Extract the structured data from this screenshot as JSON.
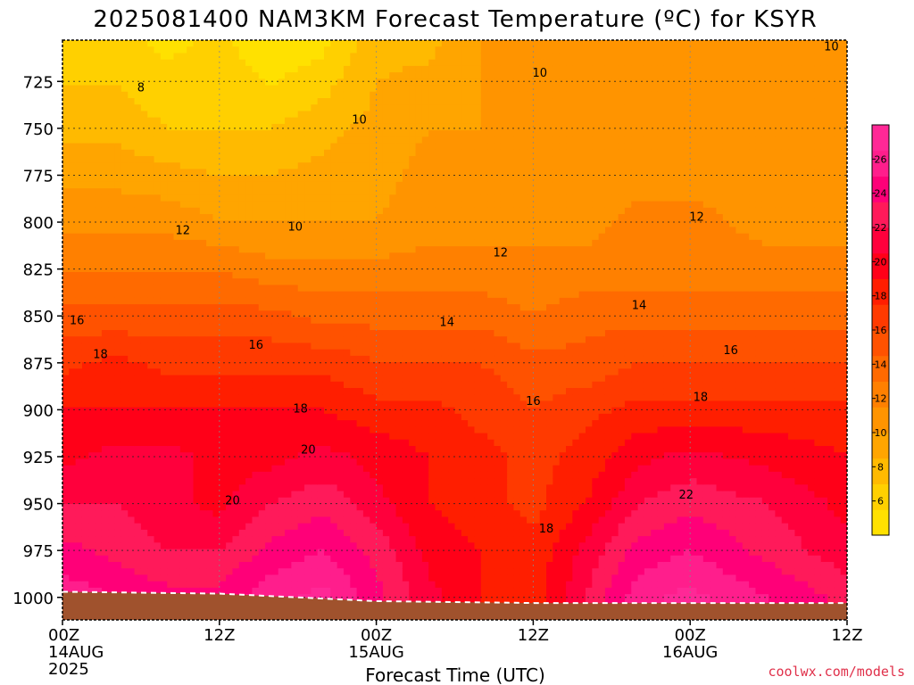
{
  "chart_data": {
    "type": "heatmap",
    "title": "2025081400 NAM3KM Forecast Temperature (ºC) for KSYR",
    "xlabel": "Forecast Time (UTC)",
    "ylabel": "",
    "x_ticks": [
      {
        "hour": 0,
        "lines": [
          "00Z",
          "14AUG",
          "2025"
        ]
      },
      {
        "hour": 12,
        "lines": [
          "12Z"
        ]
      },
      {
        "hour": 24,
        "lines": [
          "00Z",
          "15AUG"
        ]
      },
      {
        "hour": 36,
        "lines": [
          "12Z"
        ]
      },
      {
        "hour": 48,
        "lines": [
          "00Z",
          "16AUG"
        ]
      },
      {
        "hour": 60,
        "lines": [
          "12Z"
        ]
      }
    ],
    "xlim": [
      0,
      60
    ],
    "y_ticks": [
      725,
      750,
      775,
      800,
      825,
      850,
      875,
      900,
      925,
      950,
      975,
      1000
    ],
    "ylim": [
      1012,
      703
    ],
    "y_unit": "hPa",
    "grid": true,
    "colorbar": {
      "ticks": [
        6,
        8,
        10,
        12,
        14,
        16,
        18,
        20,
        22,
        24,
        26
      ],
      "range": [
        4,
        28
      ],
      "colors": [
        "#ffe100",
        "#ffd000",
        "#ffba00",
        "#ffa500",
        "#ff9400",
        "#ff8000",
        "#ff6a00",
        "#ff5200",
        "#ff3a00",
        "#ff1e00",
        "#ff0018",
        "#ff003c",
        "#ff1a5a",
        "#ff0078",
        "#ff1e8c",
        "#ff2896"
      ]
    },
    "contour_labels": [
      {
        "t": 6.0,
        "p": 728,
        "v": "8"
      },
      {
        "t": 22.7,
        "p": 745,
        "v": "10"
      },
      {
        "t": 36.5,
        "p": 720,
        "v": "10"
      },
      {
        "t": 58.8,
        "p": 706,
        "v": "10"
      },
      {
        "t": 17.8,
        "p": 802,
        "v": "10"
      },
      {
        "t": 9.2,
        "p": 804,
        "v": "12"
      },
      {
        "t": 33.5,
        "p": 816,
        "v": "12"
      },
      {
        "t": 48.5,
        "p": 797,
        "v": "12"
      },
      {
        "t": 1.1,
        "p": 852,
        "v": "16"
      },
      {
        "t": 2.9,
        "p": 870,
        "v": "18"
      },
      {
        "t": 14.8,
        "p": 865,
        "v": "16"
      },
      {
        "t": 29.4,
        "p": 853,
        "v": "14"
      },
      {
        "t": 44.1,
        "p": 844,
        "v": "14"
      },
      {
        "t": 51.1,
        "p": 868,
        "v": "16"
      },
      {
        "t": 36.0,
        "p": 895,
        "v": "16"
      },
      {
        "t": 48.8,
        "p": 893,
        "v": "18"
      },
      {
        "t": 18.2,
        "p": 899,
        "v": "18"
      },
      {
        "t": 18.8,
        "p": 921,
        "v": "20"
      },
      {
        "t": 13.0,
        "p": 948,
        "v": "20"
      },
      {
        "t": 37.0,
        "p": 963,
        "v": "18"
      },
      {
        "t": 47.7,
        "p": 945,
        "v": "22"
      }
    ],
    "temperature_field": [
      {
        "p": 703,
        "t": [
          6,
          6,
          5,
          6,
          4,
          5,
          8,
          8,
          10,
          10,
          10,
          10,
          10,
          11,
          10
        ]
      },
      {
        "p": 750,
        "t": [
          8,
          8,
          7,
          7,
          7,
          8,
          9,
          10,
          10,
          10,
          10,
          10,
          10,
          11,
          10
        ]
      },
      {
        "p": 800,
        "t": [
          11,
          11,
          11,
          10,
          10,
          10,
          10,
          11,
          11,
          11,
          11,
          12,
          12,
          11,
          11
        ]
      },
      {
        "p": 825,
        "t": [
          13,
          13,
          13,
          13,
          12,
          12,
          12,
          12,
          12,
          12,
          12,
          12,
          12,
          12,
          12
        ]
      },
      {
        "p": 850,
        "t": [
          15,
          15,
          15,
          15,
          15,
          14,
          14,
          14,
          14,
          13,
          14,
          14,
          14,
          14,
          14
        ]
      },
      {
        "p": 875,
        "t": [
          17,
          18,
          17,
          17,
          17,
          17,
          16,
          16,
          16,
          15,
          15,
          16,
          16,
          16,
          16
        ]
      },
      {
        "p": 900,
        "t": [
          19,
          19,
          19,
          19,
          19,
          19,
          18,
          18,
          17,
          16,
          17,
          18,
          18,
          18,
          18
        ]
      },
      {
        "p": 925,
        "t": [
          20,
          21,
          21,
          20,
          20,
          21,
          20,
          19,
          18,
          17,
          18,
          20,
          21,
          20,
          19
        ]
      },
      {
        "p": 950,
        "t": [
          22,
          22,
          21,
          20,
          22,
          23,
          21,
          19,
          18,
          17,
          19,
          22,
          23,
          22,
          20
        ]
      },
      {
        "p": 975,
        "t": [
          24,
          23,
          22,
          22,
          24,
          25,
          23,
          20,
          19,
          18,
          21,
          24,
          25,
          23,
          21
        ]
      },
      {
        "p": 1000,
        "t": [
          26,
          25,
          24,
          24,
          26,
          27,
          24,
          21,
          19,
          18,
          22,
          26,
          27,
          25,
          23
        ]
      },
      {
        "p": 1012,
        "t": [
          26,
          25,
          24,
          24,
          26,
          27,
          24,
          21,
          19,
          18,
          22,
          26,
          27,
          25,
          23
        ]
      }
    ],
    "field_hours": [
      0,
      4,
      8,
      12,
      16,
      20,
      24,
      28,
      32,
      36,
      40,
      44,
      48,
      54,
      60
    ],
    "surface_pressure": [
      {
        "t": 0,
        "p": 997
      },
      {
        "t": 12,
        "p": 998
      },
      {
        "t": 24,
        "p": 1002
      },
      {
        "t": 36,
        "p": 1003
      },
      {
        "t": 48,
        "p": 1003
      },
      {
        "t": 60,
        "p": 1003
      }
    ],
    "ground_color": "#a0522d"
  },
  "credit": "coolwx.com/models"
}
